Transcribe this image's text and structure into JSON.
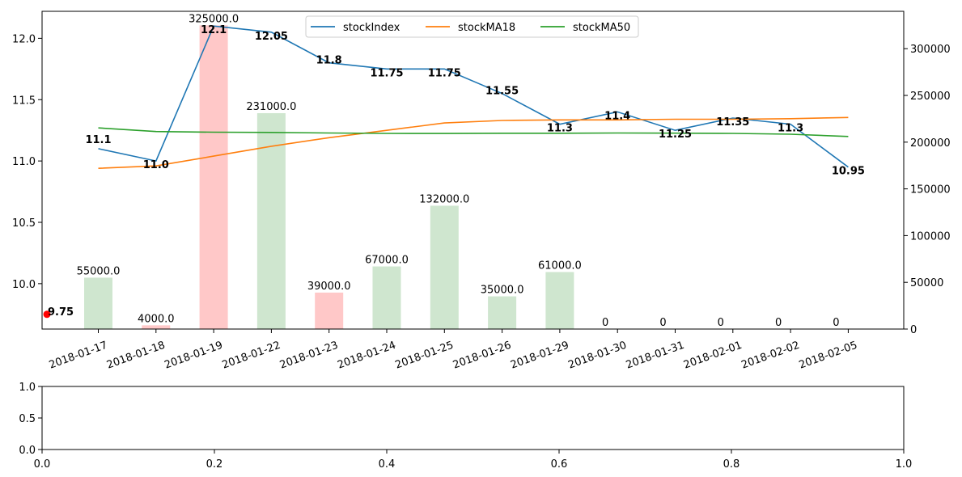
{
  "chart_data": [
    {
      "type": "line",
      "subtype": "price-volume",
      "categories": [
        "2018-01-17",
        "2018-01-18",
        "2018-01-19",
        "2018-01-22",
        "2018-01-23",
        "2018-01-24",
        "2018-01-25",
        "2018-01-26",
        "2018-01-29",
        "2018-01-30",
        "2018-01-31",
        "2018-02-01",
        "2018-02-02",
        "2018-02-05"
      ],
      "series": [
        {
          "name": "stockIndex",
          "axis": "left",
          "color": "#1f77b4",
          "values": [
            11.1,
            11.0,
            12.1,
            12.05,
            11.8,
            11.75,
            11.75,
            11.55,
            11.3,
            11.4,
            11.25,
            11.35,
            11.3,
            10.95
          ]
        },
        {
          "name": "stockMA18",
          "axis": "left",
          "color": "#ff7f0e",
          "values": [
            10.94,
            10.96,
            11.04,
            11.12,
            11.19,
            11.25,
            11.31,
            11.33,
            11.335,
            11.335,
            11.34,
            11.34,
            11.345,
            11.355
          ]
        },
        {
          "name": "stockMA50",
          "axis": "left",
          "color": "#2ca02c",
          "values": [
            11.27,
            11.24,
            11.235,
            11.233,
            11.228,
            11.225,
            11.224,
            11.226,
            11.226,
            11.228,
            11.227,
            11.225,
            11.218,
            11.2
          ]
        }
      ],
      "price_labels": [
        "11.1",
        "11.0",
        "12.1",
        "12.05",
        "11.8",
        "11.75",
        "11.75",
        "11.55",
        "11.3",
        "11.4",
        "11.25",
        "11.35",
        "11.3",
        "10.95"
      ],
      "volume": {
        "axis": "right",
        "values": [
          55000,
          4000,
          325000,
          231000,
          39000,
          67000,
          132000,
          35000,
          61000,
          0,
          0,
          0,
          0,
          0
        ],
        "labels": [
          "55000.0",
          "4000.0",
          "325000.0",
          "231000.0",
          "39000.0",
          "67000.0",
          "132000.0",
          "35000.0",
          "61000.0",
          "0",
          "0",
          "0",
          "0",
          "0"
        ],
        "colors": [
          "#cfe6cf",
          "#ffc8c8",
          "#ffc8c8",
          "#cfe6cf",
          "#ffc8c8",
          "#cfe6cf",
          "#cfe6cf",
          "#cfe6cf",
          "#cfe6cf",
          "#cfe6cf",
          "#cfe6cf",
          "#cfe6cf",
          "#cfe6cf",
          "#cfe6cf"
        ]
      },
      "marker": {
        "label": "9.75",
        "value": 9.75,
        "color": "#ff0000"
      },
      "ylim_left": [
        9.63,
        12.22
      ],
      "yticks_left": [
        "10.0",
        "10.5",
        "11.0",
        "11.5",
        "12.0"
      ],
      "ylim_right": [
        0,
        340000
      ],
      "yticks_right": [
        "0",
        "50000",
        "100000",
        "150000",
        "200000",
        "250000",
        "300000"
      ],
      "legend": {
        "placement": "upper-center",
        "ncol": 3
      },
      "grid": false
    },
    {
      "type": "empty",
      "xlim": [
        0,
        1
      ],
      "ylim": [
        0,
        1
      ],
      "xticks": [
        "0.0",
        "0.2",
        "0.4",
        "0.6",
        "0.8",
        "1.0"
      ],
      "yticks": [
        "0.0",
        "0.5",
        "1.0"
      ]
    }
  ]
}
